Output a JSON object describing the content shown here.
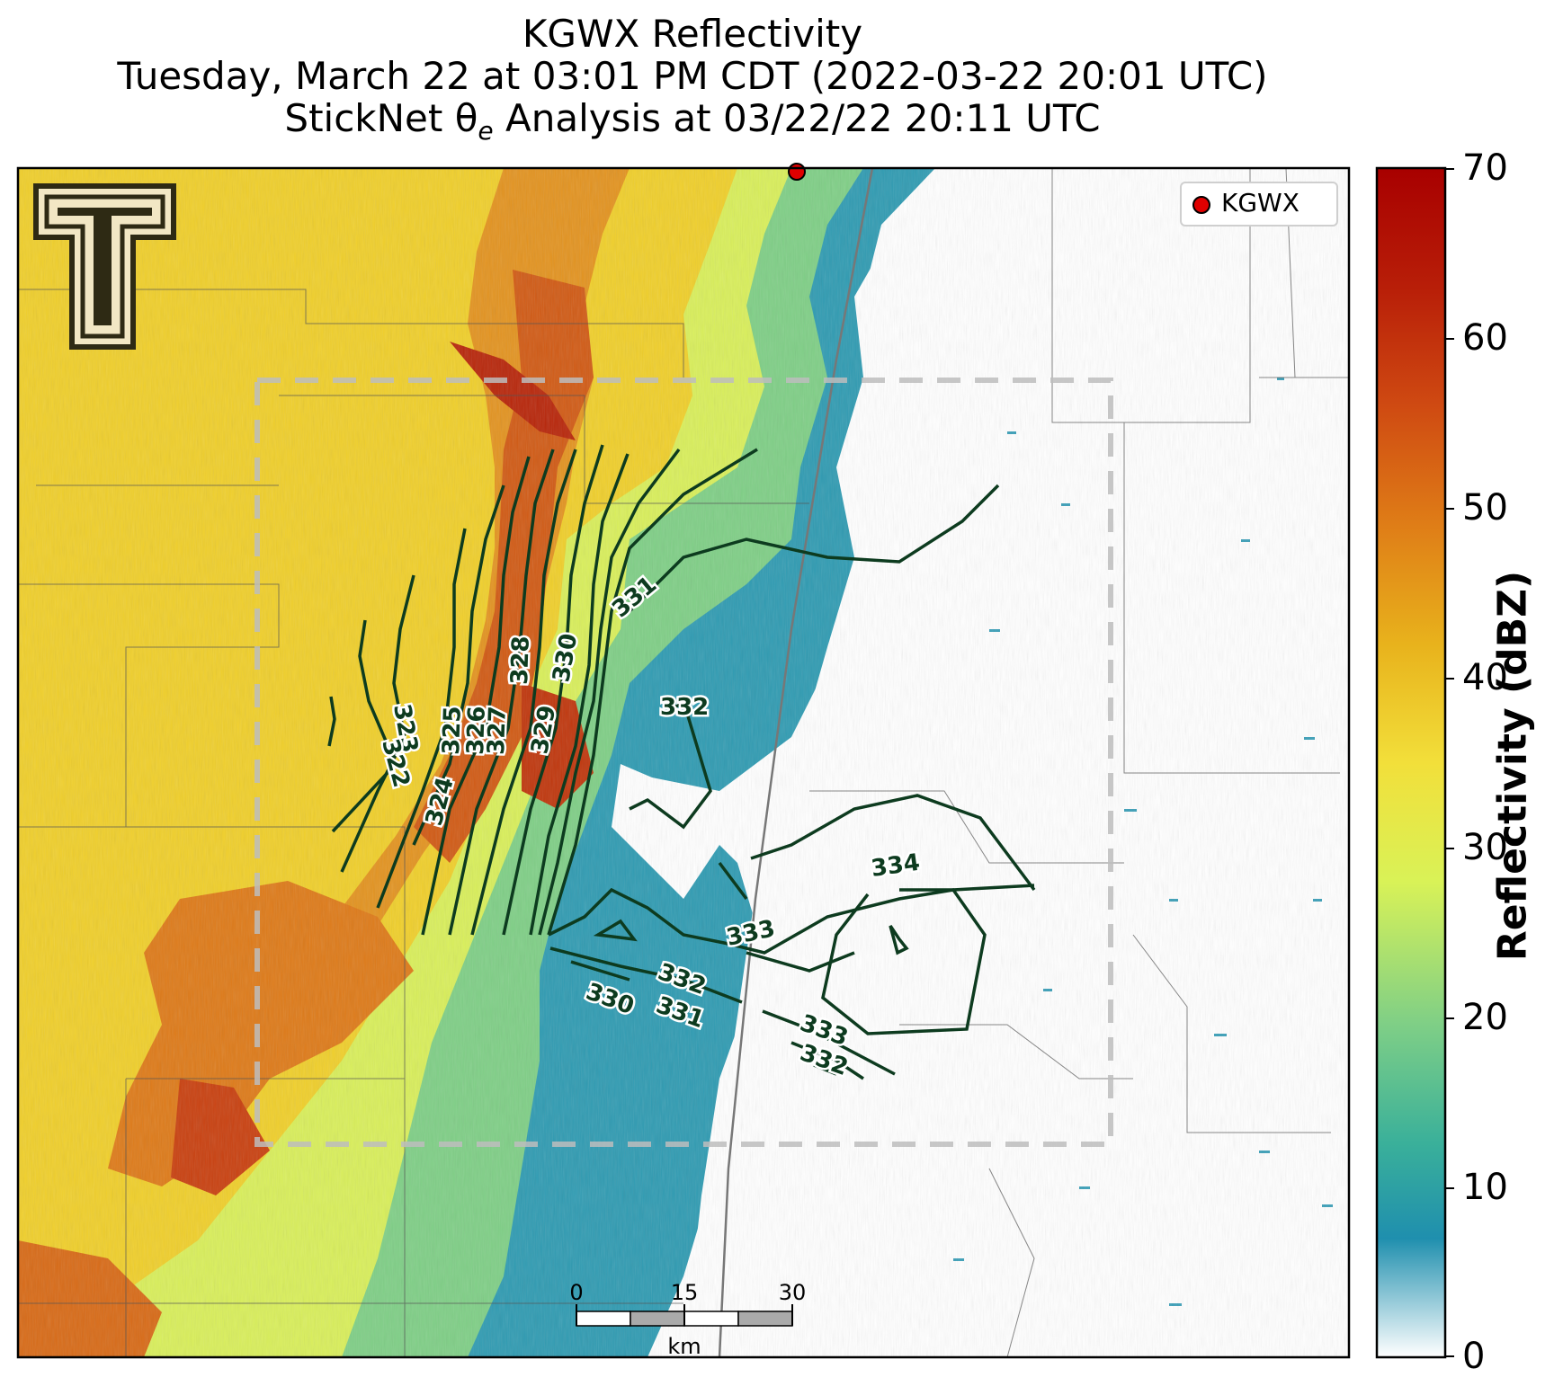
{
  "title": {
    "line1": "KGWX Reflectivity",
    "line2": "Tuesday, March 22 at 03:01 PM CDT (2022-03-22 20:01 UTC)",
    "line3_prefix": "StickNet θ",
    "line3_sub": "e",
    "line3_suffix": " Analysis at 03/22/22 20:11 UTC"
  },
  "legend": {
    "label": "KGWX",
    "marker_color": "#e00000"
  },
  "colorbar": {
    "title": "Reflectivity (dBZ)",
    "ticks": [
      "70",
      "60",
      "50",
      "40",
      "30",
      "20",
      "10",
      "0"
    ],
    "colors": [
      "#ffffff",
      "#1f8fae",
      "#3ab09a",
      "#7fcf86",
      "#d9f257",
      "#f2df3a",
      "#e8b21c",
      "#df7d17",
      "#cf4a12",
      "#b81e08",
      "#a80000"
    ]
  },
  "scale_bar": {
    "ticks": [
      "0",
      "15",
      "30"
    ],
    "unit": "km"
  },
  "contour_labels": [
    "331",
    "330",
    "328",
    "329",
    "327",
    "326",
    "325",
    "323",
    "322",
    "324",
    "332",
    "334",
    "333",
    "332",
    "330",
    "331",
    "333",
    "332"
  ],
  "logo": {
    "name": "Texas Tech Double T",
    "text": "T"
  }
}
